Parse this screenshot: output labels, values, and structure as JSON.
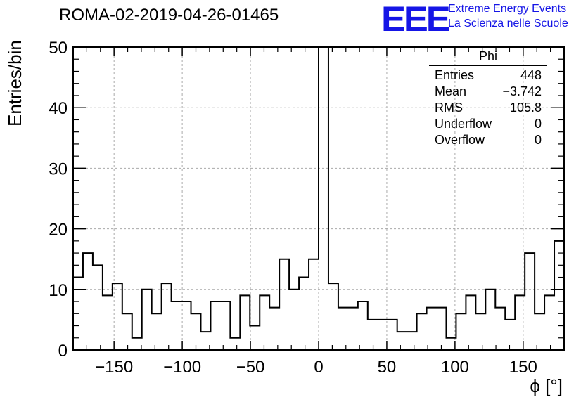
{
  "title": "ROMA-02-2019-04-26-01465",
  "logo": {
    "letters": "EEE",
    "line1": "Extreme Energy Events",
    "line2": "La Scienza nelle Scuole",
    "color": "#1515e6"
  },
  "stats_box": {
    "header": "Phi",
    "rows": [
      {
        "label": "Entries",
        "value": "448"
      },
      {
        "label": "Mean",
        "value": "−3.742"
      },
      {
        "label": "RMS",
        "value": "105.8"
      },
      {
        "label": "Underflow",
        "value": "0"
      },
      {
        "label": "Overflow",
        "value": "0"
      }
    ]
  },
  "chart_data": {
    "type": "bar",
    "subtype": "histogram-step",
    "xlabel": "ϕ [°]",
    "ylabel": "Entries/bin",
    "xlim": [
      -180,
      180
    ],
    "ylim": [
      0,
      50
    ],
    "bin_width": 7.2,
    "x_ticks": [
      -150,
      -100,
      -50,
      0,
      50,
      100,
      150
    ],
    "y_ticks": [
      0,
      10,
      20,
      30,
      40,
      50
    ],
    "grid": true,
    "values": [
      12,
      16,
      14,
      9,
      11,
      6,
      2,
      10,
      6,
      11,
      8,
      8,
      6,
      3,
      8,
      8,
      2,
      9,
      4,
      9,
      7,
      15,
      10,
      12,
      15,
      50,
      11,
      7,
      7,
      8,
      5,
      5,
      5,
      3,
      3,
      6,
      7,
      7,
      2,
      6,
      9,
      6,
      10,
      7,
      5,
      9,
      16,
      6,
      9,
      18
    ]
  }
}
